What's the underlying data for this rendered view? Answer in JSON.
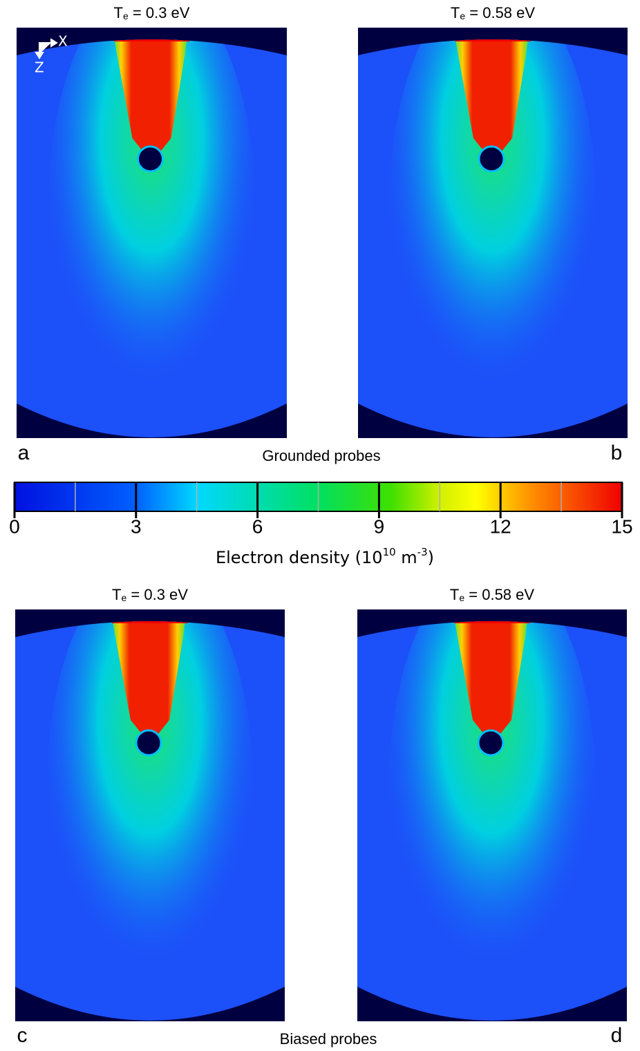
{
  "chart_data": {
    "type": "heatmap-figure",
    "panels": [
      {
        "title": {
          "symbol": "T",
          "subscript": "e",
          "rest": " = 0.3 eV"
        },
        "label": "a",
        "axes": {
          "x": "X",
          "z": "Z"
        }
      },
      {
        "title": {
          "symbol": "T",
          "subscript": "e",
          "rest": " = 0.58 eV"
        },
        "label": "b"
      },
      {
        "title": {
          "symbol": "T",
          "subscript": "e",
          "rest": " = 0.3 eV"
        },
        "label": "c"
      },
      {
        "title": {
          "symbol": "T",
          "subscript": "e",
          "rest": " = 0.58 eV"
        },
        "label": "d"
      }
    ],
    "groups": [
      "Grounded probes",
      "Biased probes"
    ],
    "colorbar": {
      "label": {
        "text": "Electron density (10",
        "sup1": "10",
        "mid": " m",
        "sup2": "-3",
        "end": ")"
      },
      "lim": [
        0,
        15
      ],
      "ticks": [
        0,
        3,
        6,
        9,
        12,
        15
      ],
      "minor_ticks": [
        1.5,
        4.5,
        7.5,
        10.5,
        13.5
      ],
      "colormap": "jet"
    }
  }
}
